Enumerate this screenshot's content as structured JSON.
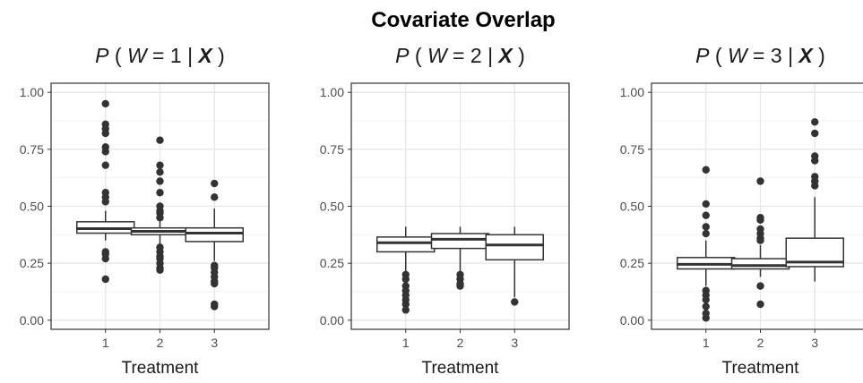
{
  "title": "Covariate Overlap",
  "chart_data": [
    {
      "type": "box",
      "title_parts": [
        "P",
        "(",
        "W",
        "= 1 |",
        "X",
        ")"
      ],
      "xlabel": "Treatment",
      "ylabel": "",
      "ylim": [
        -0.04,
        1.04
      ],
      "yticks": [
        "0.00",
        "0.25",
        "0.50",
        "0.75",
        "1.00"
      ],
      "categories": [
        "1",
        "2",
        "3"
      ],
      "grid": true,
      "boxes": [
        {
          "category": "1",
          "whisker_low": 0.35,
          "q1": 0.382,
          "median": 0.402,
          "q3": 0.432,
          "whisker_high": 0.48,
          "outliers": [
            0.95,
            0.86,
            0.84,
            0.82,
            0.76,
            0.74,
            0.68,
            0.56,
            0.54,
            0.52,
            0.3,
            0.29,
            0.27,
            0.18
          ]
        },
        {
          "category": "2",
          "whisker_low": 0.33,
          "q1": 0.375,
          "median": 0.39,
          "q3": 0.405,
          "whisker_high": 0.435,
          "outliers": [
            0.79,
            0.68,
            0.65,
            0.61,
            0.56,
            0.5,
            0.48,
            0.47,
            0.45,
            0.32,
            0.3,
            0.28,
            0.27,
            0.25,
            0.23,
            0.22
          ]
        },
        {
          "category": "3",
          "whisker_low": 0.26,
          "q1": 0.345,
          "median": 0.382,
          "q3": 0.405,
          "whisker_high": 0.49,
          "outliers": [
            0.6,
            0.54,
            0.24,
            0.23,
            0.21,
            0.19,
            0.17,
            0.16,
            0.07,
            0.06
          ]
        }
      ]
    },
    {
      "type": "box",
      "title_parts": [
        "P",
        "(",
        "W",
        "= 2 |",
        "X",
        ")"
      ],
      "xlabel": "Treatment",
      "ylabel": "",
      "ylim": [
        -0.04,
        1.04
      ],
      "yticks": [
        "0.00",
        "0.25",
        "0.50",
        "0.75",
        "1.00"
      ],
      "categories": [
        "1",
        "2",
        "3"
      ],
      "grid": true,
      "boxes": [
        {
          "category": "1",
          "whisker_low": 0.21,
          "q1": 0.3,
          "median": 0.34,
          "q3": 0.365,
          "whisker_high": 0.41,
          "outliers": [
            0.2,
            0.18,
            0.15,
            0.13,
            0.11,
            0.09,
            0.07,
            0.045
          ]
        },
        {
          "category": "2",
          "whisker_low": 0.21,
          "q1": 0.315,
          "median": 0.355,
          "q3": 0.38,
          "whisker_high": 0.41,
          "outliers": [
            0.2,
            0.18,
            0.16,
            0.15
          ]
        },
        {
          "category": "3",
          "whisker_low": 0.1,
          "q1": 0.265,
          "median": 0.33,
          "q3": 0.375,
          "whisker_high": 0.41,
          "outliers": [
            0.08
          ]
        }
      ]
    },
    {
      "type": "box",
      "title_parts": [
        "P",
        "(",
        "W",
        "= 3 |",
        "X",
        ")"
      ],
      "xlabel": "Treatment",
      "ylabel": "",
      "ylim": [
        -0.04,
        1.04
      ],
      "yticks": [
        "0.00",
        "0.25",
        "0.50",
        "0.75",
        "1.00"
      ],
      "categories": [
        "1",
        "2",
        "3"
      ],
      "grid": true,
      "boxes": [
        {
          "category": "1",
          "whisker_low": 0.15,
          "q1": 0.225,
          "median": 0.245,
          "q3": 0.275,
          "whisker_high": 0.35,
          "outliers": [
            0.66,
            0.51,
            0.46,
            0.41,
            0.38,
            0.13,
            0.11,
            0.09,
            0.06,
            0.03,
            0.01
          ]
        },
        {
          "category": "2",
          "whisker_low": 0.19,
          "q1": 0.225,
          "median": 0.24,
          "q3": 0.27,
          "whisker_high": 0.33,
          "outliers": [
            0.61,
            0.45,
            0.44,
            0.4,
            0.38,
            0.36,
            0.35,
            0.15,
            0.07
          ]
        },
        {
          "category": "3",
          "whisker_low": 0.17,
          "q1": 0.235,
          "median": 0.255,
          "q3": 0.36,
          "whisker_high": 0.54,
          "outliers": [
            0.87,
            0.82,
            0.72,
            0.7,
            0.63,
            0.61,
            0.59
          ]
        }
      ]
    }
  ]
}
